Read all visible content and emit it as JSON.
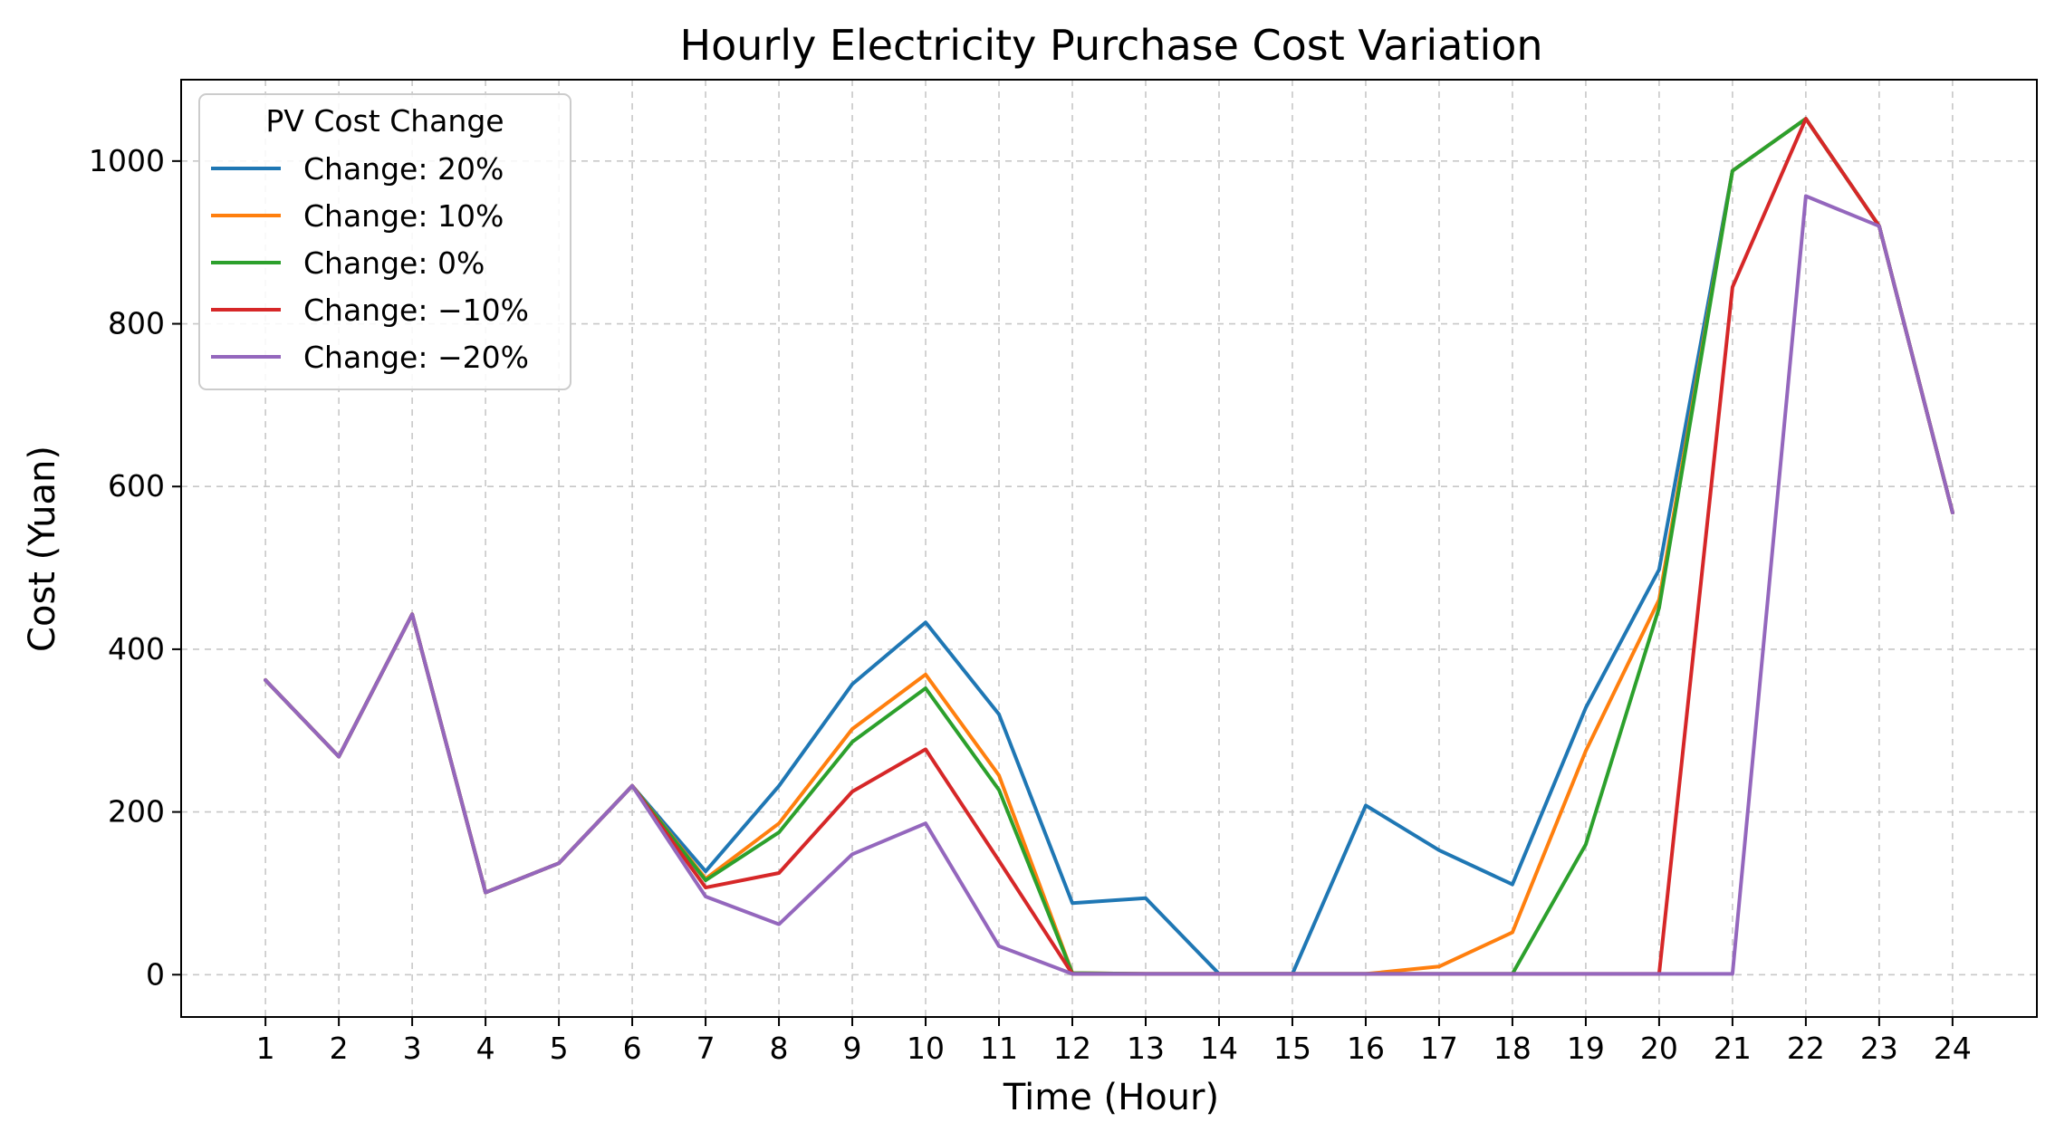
{
  "chart_data": {
    "type": "line",
    "title": "Hourly Electricity Purchase Cost Variation",
    "xlabel": "Time (Hour)",
    "ylabel": "Cost (Yuan)",
    "x": [
      1,
      2,
      3,
      4,
      5,
      6,
      7,
      8,
      9,
      10,
      11,
      12,
      13,
      14,
      15,
      16,
      17,
      18,
      19,
      20,
      21,
      22,
      23,
      24
    ],
    "x_tick_labels": [
      "1",
      "2",
      "3",
      "4",
      "5",
      "6",
      "7",
      "8",
      "9",
      "10",
      "11",
      "12",
      "13",
      "14",
      "15",
      "16",
      "17",
      "18",
      "19",
      "20",
      "21",
      "22",
      "23",
      "24"
    ],
    "xlim": [
      -0.15,
      25.15
    ],
    "ylim": [
      -52,
      1100
    ],
    "y_ticks": [
      0,
      200,
      400,
      600,
      800,
      1000
    ],
    "y_tick_labels": [
      "0",
      "200",
      "400",
      "600",
      "800",
      "1000"
    ],
    "grid": true,
    "legend": {
      "title": "PV Cost Change",
      "placement": "top-left"
    },
    "series": [
      {
        "name": "Change: 20%",
        "color": "#1f77b4",
        "values": [
          362,
          268,
          443,
          101,
          137,
          232,
          127,
          232,
          357,
          433,
          320,
          88,
          94,
          1,
          1,
          208,
          153,
          111,
          328,
          498,
          988,
          1052,
          920,
          568
        ]
      },
      {
        "name": "Change: 10%",
        "color": "#ff7f0e",
        "values": [
          362,
          268,
          443,
          101,
          137,
          232,
          118,
          186,
          302,
          369,
          245,
          2,
          1,
          1,
          1,
          1,
          10,
          52,
          275,
          461,
          988,
          1052,
          920,
          568
        ]
      },
      {
        "name": "Change: 0%",
        "color": "#2ca02c",
        "values": [
          362,
          268,
          443,
          101,
          137,
          232,
          116,
          175,
          286,
          352,
          227,
          2,
          1,
          1,
          1,
          1,
          1,
          1,
          160,
          451,
          988,
          1052,
          920,
          568
        ]
      },
      {
        "name": "Change: −10%",
        "color": "#d62728",
        "values": [
          362,
          268,
          443,
          101,
          137,
          232,
          107,
          125,
          225,
          277,
          140,
          1,
          1,
          1,
          1,
          1,
          1,
          1,
          1,
          1,
          845,
          1052,
          920,
          568
        ]
      },
      {
        "name": "Change: −20%",
        "color": "#9467bd",
        "values": [
          362,
          268,
          443,
          101,
          137,
          232,
          96,
          62,
          148,
          186,
          35,
          1,
          1,
          1,
          1,
          1,
          1,
          1,
          1,
          1,
          1,
          957,
          920,
          568
        ]
      }
    ]
  }
}
